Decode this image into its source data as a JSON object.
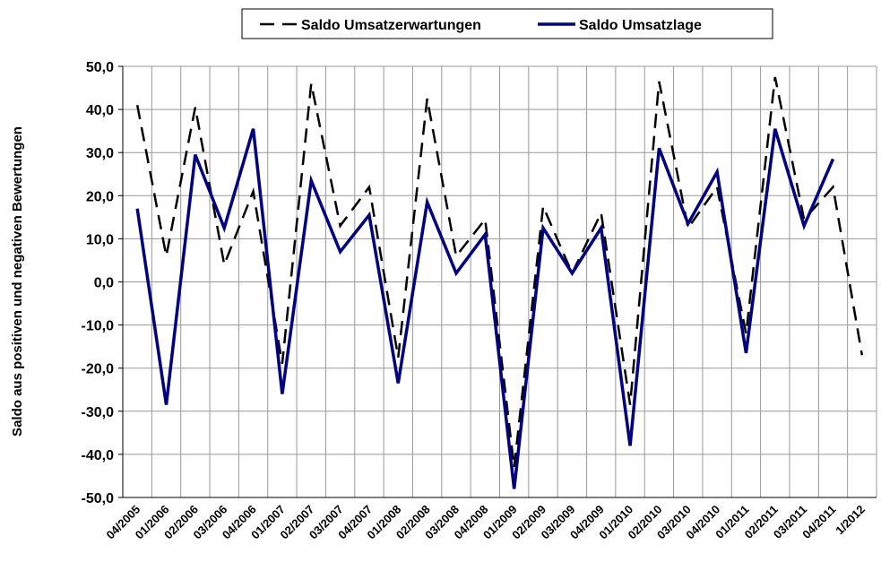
{
  "chart_data": {
    "type": "line",
    "y_label": "Saldo aus positiven und negativen Bewertungen",
    "categories": [
      "04/2005",
      "01/2006",
      "02/2006",
      "03/2006",
      "04/2006",
      "01/2007",
      "02/2007",
      "03/2007",
      "04/2007",
      "01/2008",
      "02/2008",
      "03/2008",
      "04/2008",
      "01/2009",
      "02/2009",
      "03/2009",
      "04/2009",
      "01/2010",
      "02/2010",
      "03/2010",
      "04/2010",
      "01/2011",
      "02/2011",
      "03/2011",
      "04/2011",
      "1/2012"
    ],
    "series": [
      {
        "name": "Saldo Umsatzerwartungen",
        "color": "#000000",
        "dash": true,
        "values": [
          41,
          6,
          40.5,
          4,
          21,
          -19,
          46,
          13,
          22,
          -17.5,
          42.5,
          6,
          14.5,
          -43,
          17.5,
          2,
          16,
          -28.5,
          46.5,
          12.5,
          22,
          -12,
          47.5,
          14.5,
          22,
          -17
        ]
      },
      {
        "name": "Saldo Umsatzlage",
        "color": "#000080",
        "dash": false,
        "values": [
          17,
          -28.5,
          29.5,
          12.5,
          35.5,
          -26,
          23.5,
          7,
          15.5,
          -23.5,
          18.5,
          2,
          11,
          -48,
          12.5,
          2,
          12.5,
          -38,
          31,
          13.5,
          25.5,
          -16.5,
          35.5,
          13,
          28.5,
          null
        ]
      }
    ],
    "ylim": [
      -50,
      50
    ],
    "yticks": [
      {
        "value": 50,
        "label": "50,0"
      },
      {
        "value": 40,
        "label": "40,0"
      },
      {
        "value": 30,
        "label": "30,0"
      },
      {
        "value": 20,
        "label": "20,0"
      },
      {
        "value": 10,
        "label": "10,0"
      },
      {
        "value": 0,
        "label": "0,0"
      },
      {
        "value": -10,
        "label": "-10,0"
      },
      {
        "value": -20,
        "label": "-20,0"
      },
      {
        "value": -30,
        "label": "-30,0"
      },
      {
        "value": -40,
        "label": "-40,0"
      },
      {
        "value": -50,
        "label": "-50,0"
      }
    ],
    "grid": true,
    "legend": "top"
  }
}
